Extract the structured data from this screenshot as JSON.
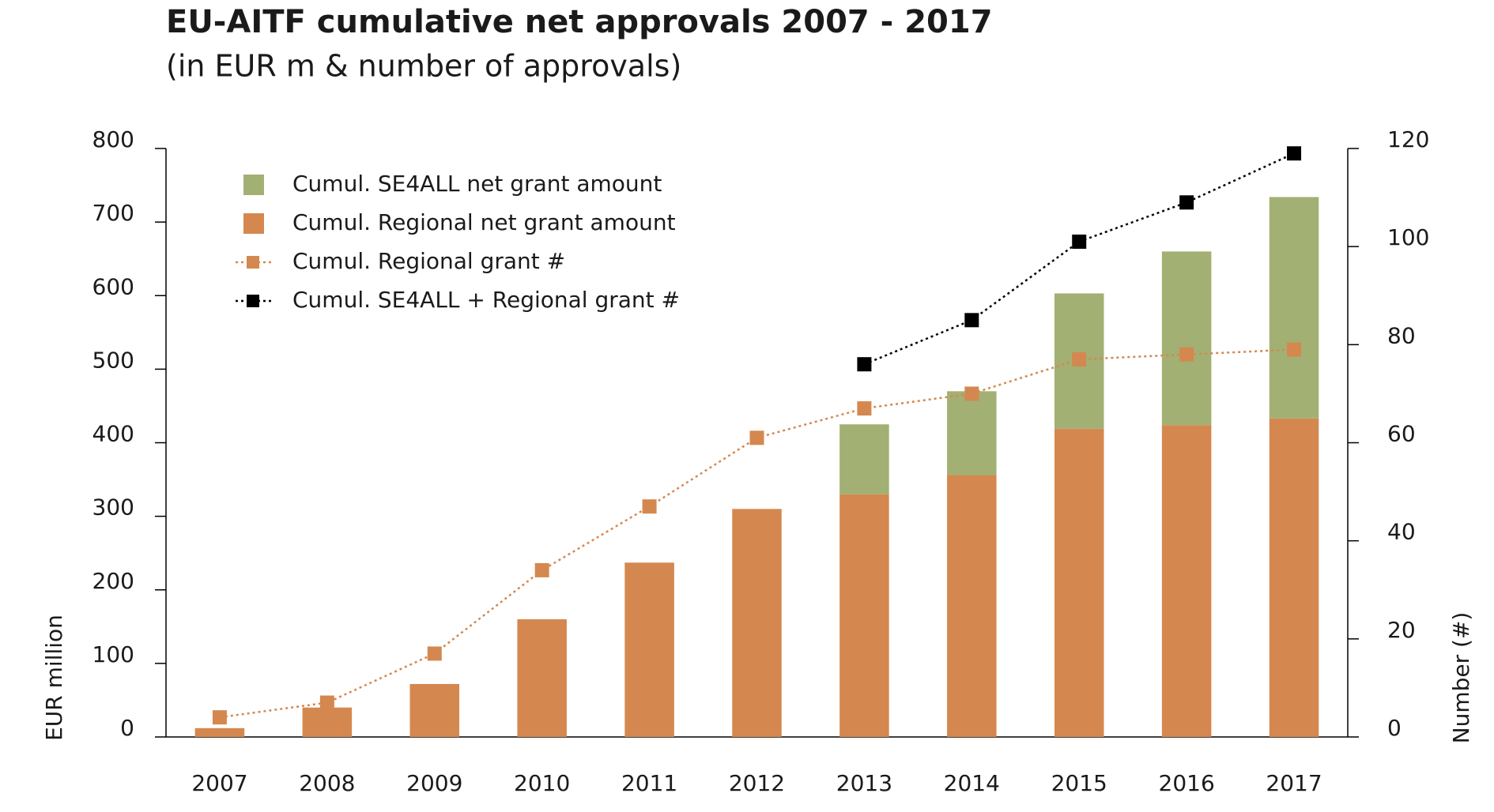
{
  "chart_data": {
    "type": "bar",
    "title": "EU-AITF cumulative net approvals 2007 - 2017",
    "subtitle": "(in EUR m & number of approvals)",
    "y_label": "EUR million",
    "y2_label": "Number (#)",
    "categories": [
      "2007",
      "2008",
      "2009",
      "2010",
      "2011",
      "2012",
      "2013",
      "2014",
      "2015",
      "2016",
      "2017"
    ],
    "series": [
      {
        "name": "Cumul. SE4ALL net grant amount",
        "type": "bar",
        "color": "#a2b073",
        "values": [
          null,
          null,
          null,
          null,
          null,
          null,
          95,
          114,
          184,
          236,
          301
        ]
      },
      {
        "name": "Cumul. Regional net grant amount",
        "type": "bar",
        "color": "#d4884f",
        "values": [
          12,
          40,
          72,
          160,
          237,
          310,
          330,
          356,
          419,
          424,
          433
        ]
      },
      {
        "name": "Cumul. Regional grant #",
        "type": "line",
        "axis": "y2",
        "color": "#d4884f",
        "values": [
          4,
          7,
          17,
          34,
          47,
          61,
          67,
          70,
          77,
          78,
          79
        ]
      },
      {
        "name": "Cumul. SE4ALL + Regional grant #",
        "type": "line",
        "axis": "y2",
        "color": "#000000",
        "values": [
          null,
          null,
          null,
          null,
          null,
          null,
          76,
          85,
          101,
          109,
          119
        ]
      }
    ],
    "ylim": [
      0,
      800
    ],
    "yticks": [
      0,
      100,
      200,
      300,
      400,
      500,
      600,
      700,
      800
    ],
    "y2lim": [
      0,
      120
    ],
    "y2ticks": [
      0,
      20,
      40,
      60,
      80,
      100,
      120
    ],
    "stacked": true,
    "grid": false,
    "legend": "top-left"
  }
}
